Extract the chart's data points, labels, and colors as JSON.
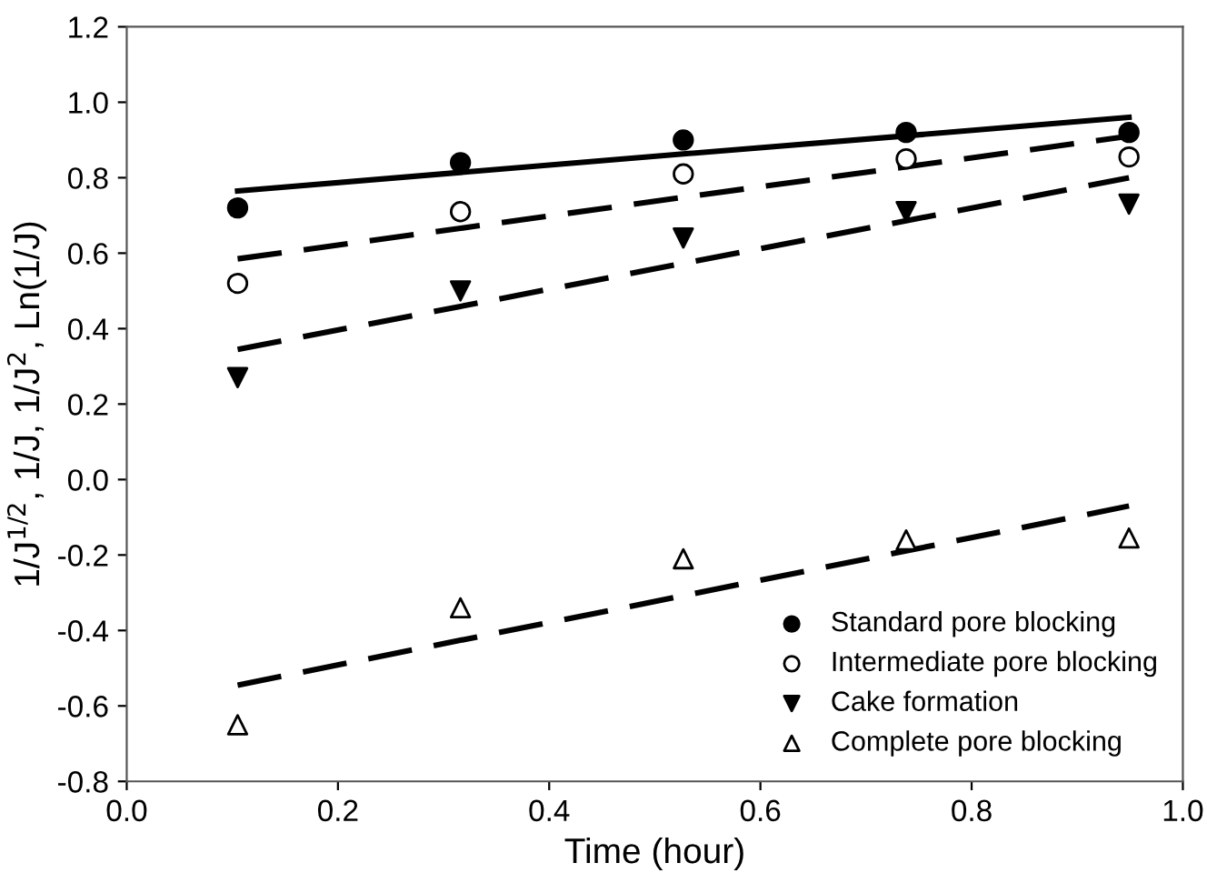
{
  "chart_data": {
    "type": "scatter",
    "xlabel": "Time (hour)",
    "ylabel": "1/J$^{1/2}$, 1/J, 1/J$^{2}$, Ln(1/J)",
    "x": [
      0.105,
      0.316,
      0.527,
      0.738,
      0.949
    ],
    "series": [
      {
        "name": "Standard pore blocking",
        "color": "#000000",
        "marker": "circle",
        "values": [
          0.72,
          0.84,
          0.9,
          0.92,
          0.92
        ]
      },
      {
        "name": "Intermediate pore blocking",
        "color": "#ffffff",
        "marker": "circle",
        "values": [
          0.52,
          0.71,
          0.81,
          0.85,
          0.855
        ]
      },
      {
        "name": "Cake formation",
        "color": "#000000",
        "marker": "triangle_down",
        "values": [
          0.27,
          0.5,
          0.64,
          0.71,
          0.73
        ]
      },
      {
        "name": "Complete pore blocking",
        "color": "#ffffff",
        "marker": "triangle",
        "values": [
          -0.65,
          -0.34,
          -0.21,
          -0.16,
          -0.155
        ]
      },
      {
        "type": "line",
        "color": "#000000",
        "line_style": "solid",
        "values": [
          0.765,
          0.814,
          0.863,
          0.911,
          0.96
        ]
      },
      {
        "type": "line",
        "color": "#000000",
        "line_style": "dashed",
        "values": [
          0.585,
          0.666,
          0.748,
          0.829,
          0.91
        ]
      },
      {
        "type": "line",
        "color": "#000000",
        "line_style": "dashed",
        "values": [
          0.345,
          0.459,
          0.573,
          0.686,
          0.8
        ]
      },
      {
        "type": "line",
        "color": "#000000",
        "line_style": "dashed",
        "values": [
          -0.545,
          -0.426,
          -0.308,
          -0.189,
          -0.07
        ]
      }
    ],
    "xlim": [
      0.0,
      1.0
    ],
    "xticks": [
      {
        "value": 0,
        "label": "0.0"
      },
      0.2,
      0.4,
      0.6,
      0.8,
      {
        "value": 1,
        "label": "1.0"
      }
    ],
    "ylim": [
      -0.8,
      1.2
    ],
    "yticks": [
      -0.8,
      -0.6,
      -0.4,
      -0.2,
      {
        "value": 0,
        "label": "0.0"
      },
      0.2,
      0.4,
      0.6,
      0.8,
      {
        "value": 1,
        "label": "1.0"
      },
      1.2
    ],
    "grid": false,
    "legend": "lower right"
  }
}
